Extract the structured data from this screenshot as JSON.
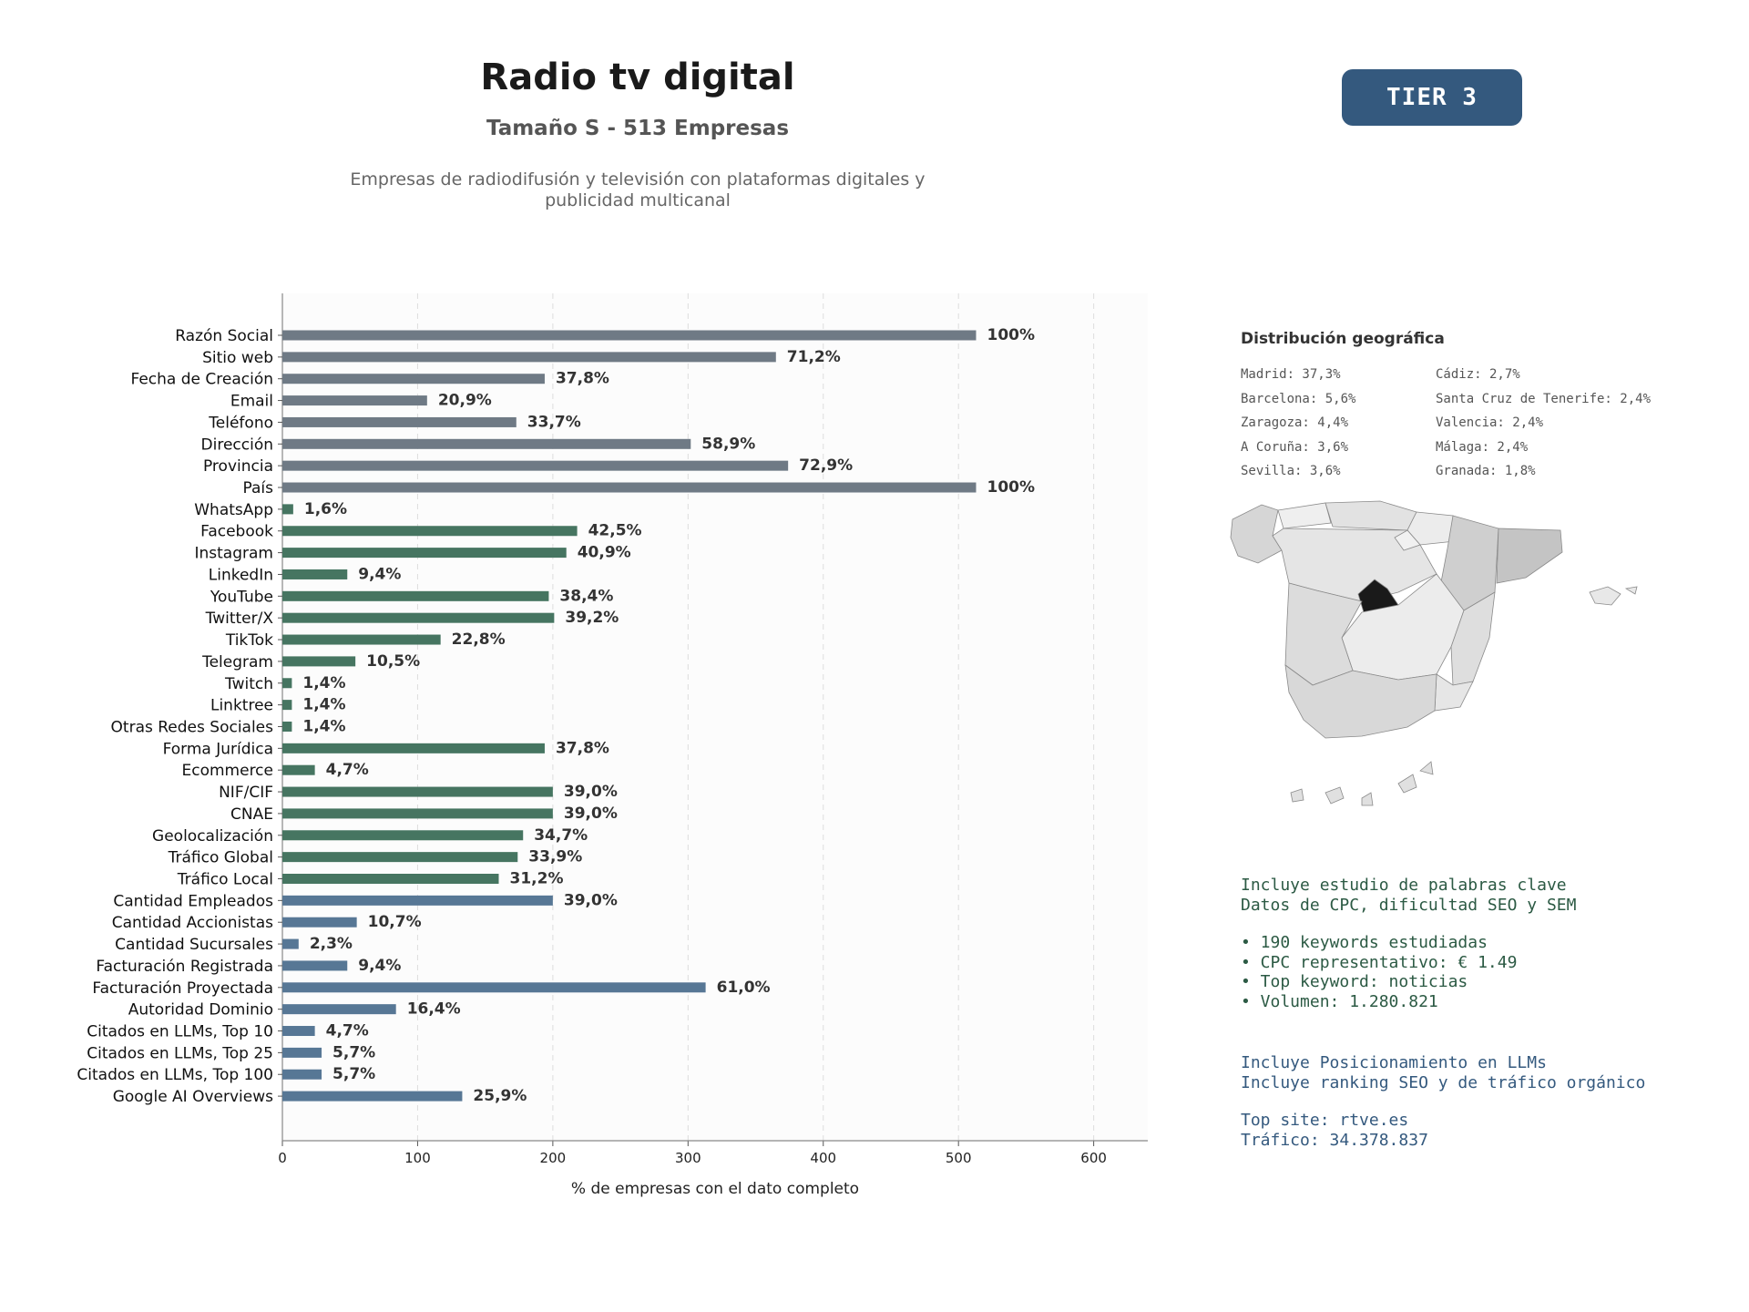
{
  "header": {
    "title": "Radio tv digital",
    "subtitle": "Tamaño S - 513 Empresas",
    "description_line1": "Empresas de radiodifusión y televisión con plataformas digitales y",
    "description_line2": "publicidad multicanal",
    "tier": "TIER 3"
  },
  "colors": {
    "gray": "#6f7a85",
    "green": "#467561",
    "blue": "#577795",
    "badge": "#34597e"
  },
  "chart_data": {
    "type": "bar",
    "orientation": "horizontal",
    "xlabel": "% de empresas con el dato completo",
    "xlim": [
      0,
      640
    ],
    "xticks": [
      0,
      100,
      200,
      300,
      400,
      500,
      600
    ],
    "grid": "vertical dashed",
    "categories": [
      "Razón Social",
      "Sitio web",
      "Fecha de Creación",
      "Email",
      "Teléfono",
      "Dirección",
      "Provincia",
      "País",
      "WhatsApp",
      "Facebook",
      "Instagram",
      "LinkedIn",
      "YouTube",
      "Twitter/X",
      "TikTok",
      "Telegram",
      "Twitch",
      "Linktree",
      "Otras Redes Sociales",
      "Forma Jurídica",
      "Ecommerce",
      "NIF/CIF",
      "CNAE",
      "Geolocalización",
      "Tráfico Global",
      "Tráfico Local",
      "Cantidad Empleados",
      "Cantidad Accionistas",
      "Cantidad Sucursales",
      "Facturación Registrada",
      "Facturación Proyectada",
      "Autoridad Dominio",
      "Citados en LLMs, Top 10",
      "Citados en LLMs, Top 25",
      "Citados en LLMs, Top 100",
      "Google AI Overviews"
    ],
    "values": [
      513,
      365,
      194,
      107,
      173,
      302,
      374,
      513,
      8,
      218,
      210,
      48,
      197,
      201,
      117,
      54,
      7,
      7,
      7,
      194,
      24,
      200,
      200,
      178,
      174,
      160,
      200,
      55,
      12,
      48,
      313,
      84,
      24,
      29,
      29,
      133
    ],
    "labels": [
      "100%",
      "71,2%",
      "37,8%",
      "20,9%",
      "33,7%",
      "58,9%",
      "72,9%",
      "100%",
      "1,6%",
      "42,5%",
      "40,9%",
      "9,4%",
      "38,4%",
      "39,2%",
      "22,8%",
      "10,5%",
      "1,4%",
      "1,4%",
      "1,4%",
      "37,8%",
      "4,7%",
      "39,0%",
      "39,0%",
      "34,7%",
      "33,9%",
      "31,2%",
      "39,0%",
      "10,7%",
      "2,3%",
      "9,4%",
      "61,0%",
      "16,4%",
      "4,7%",
      "5,7%",
      "5,7%",
      "25,9%"
    ],
    "groups": [
      "gray",
      "gray",
      "gray",
      "gray",
      "gray",
      "gray",
      "gray",
      "gray",
      "green",
      "green",
      "green",
      "green",
      "green",
      "green",
      "green",
      "green",
      "green",
      "green",
      "green",
      "green",
      "green",
      "green",
      "green",
      "green",
      "green",
      "green",
      "blue",
      "blue",
      "blue",
      "blue",
      "blue",
      "blue",
      "blue",
      "blue",
      "blue",
      "blue"
    ]
  },
  "geo": {
    "title": "Distribución geográfica",
    "col1": [
      "Madrid: 37,3%",
      "Barcelona: 5,6%",
      "Zaragoza: 4,4%",
      "A Coruña: 3,6%",
      "Sevilla: 3,6%"
    ],
    "col2": [
      "Cádiz: 2,7%",
      "Santa Cruz de Tenerife: 2,4%",
      "Valencia: 2,4%",
      "Málaga: 2,4%",
      "Granada: 1,8%"
    ]
  },
  "keywords": {
    "line1": "Incluye estudio de palabras clave",
    "line2": "Datos de CPC, dificultad SEO y SEM",
    "bullet1": "• 190 keywords estudiadas",
    "bullet2": "• CPC representativo: € 1.49",
    "bullet3": "• Top keyword: noticias",
    "bullet4": "• Volumen: 1.280.821"
  },
  "llm": {
    "line1": "Incluye Posicionamiento en LLMs",
    "line2": "Incluye ranking SEO y de tráfico orgánico",
    "top_site": "Top site: rtve.es",
    "traffic": "Tráfico: 34.378.837"
  }
}
